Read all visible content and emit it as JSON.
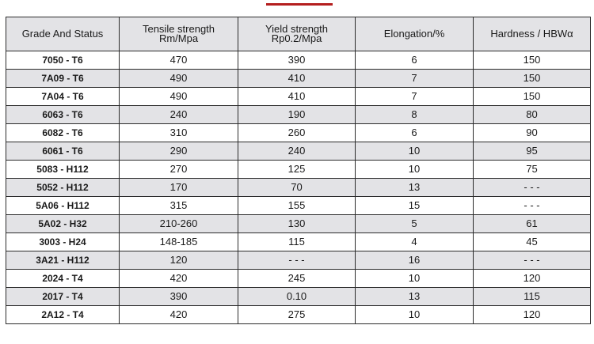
{
  "header": {
    "accent_color": "#b41e1e"
  },
  "table": {
    "columns": [
      {
        "line1": "Grade And Status",
        "line2": ""
      },
      {
        "line1": "Tensile strength",
        "line2": "Rm/Mpa"
      },
      {
        "line1": "Yield strength",
        "line2": "Rp0.2/Mpa"
      },
      {
        "line1": "Elongation/%",
        "line2": ""
      },
      {
        "line1": "Hardness / HBWα",
        "line2": ""
      }
    ],
    "rows": [
      [
        "7050 - T6",
        "470",
        "390",
        "6",
        "150"
      ],
      [
        "7A09 - T6",
        "490",
        "410",
        "7",
        "150"
      ],
      [
        "7A04 - T6",
        "490",
        "410",
        "7",
        "150"
      ],
      [
        "6063 - T6",
        "240",
        "190",
        "8",
        "80"
      ],
      [
        "6082 - T6",
        "310",
        "260",
        "6",
        "90"
      ],
      [
        "6061 - T6",
        "290",
        "240",
        "10",
        "95"
      ],
      [
        "5083 - H112",
        "270",
        "125",
        "10",
        "75"
      ],
      [
        "5052 - H112",
        "170",
        "70",
        "13",
        "- - -"
      ],
      [
        "5A06 - H112",
        "315",
        "155",
        "15",
        "- - -"
      ],
      [
        "5A02 - H32",
        "210-260",
        "130",
        "5",
        "61"
      ],
      [
        "3003 - H24",
        "148-185",
        "115",
        "4",
        "45"
      ],
      [
        "3A21 - H112",
        "120",
        "- - -",
        "16",
        "- - -"
      ],
      [
        "2024 - T4",
        "420",
        "245",
        "10",
        "120"
      ],
      [
        "2017 - T4",
        "390",
        "0.10",
        "13",
        "115"
      ],
      [
        "2A12 - T4",
        "420",
        "275",
        "10",
        "120"
      ]
    ],
    "header_bg_color": "#e3e3e6",
    "shaded_row_color": "#e3e3e6",
    "border_color": "#2b2b2b"
  }
}
